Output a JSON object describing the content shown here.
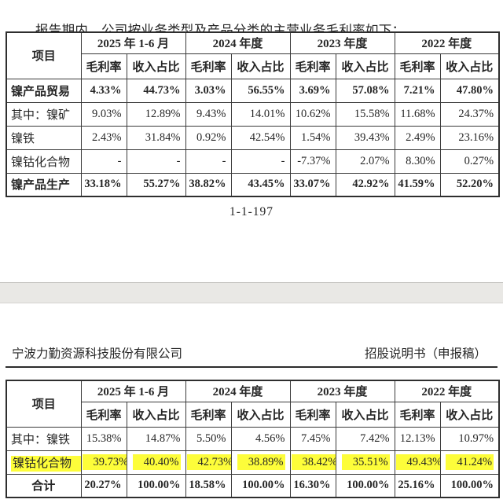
{
  "intro_text": "报告期内，公司按业务类型及产品分类的主营业务毛利率如下：",
  "page_number": "1-1-197",
  "doc_header": {
    "company": "宁波力勤资源科技股份有限公司",
    "doc_title": "招股说明书（申报稿）"
  },
  "columns": {
    "item": "项目",
    "periods": [
      "2025 年 1-6 月",
      "2024 年度",
      "2023 年度",
      "2022 年度"
    ],
    "sub": [
      "毛利率",
      "收入占比"
    ]
  },
  "colors": {
    "highlight": "#fdfd3a"
  },
  "table1": {
    "rows": [
      {
        "label": "镍产品贸易",
        "bold": true,
        "values": [
          "4.33%",
          "44.73%",
          "3.03%",
          "56.55%",
          "3.69%",
          "57.08%",
          "7.21%",
          "47.80%"
        ]
      },
      {
        "label": "其中：镍矿",
        "values": [
          "9.03%",
          "12.89%",
          "9.43%",
          "14.01%",
          "10.62%",
          "15.58%",
          "11.68%",
          "24.37%"
        ]
      },
      {
        "label": "镍铁",
        "values": [
          "2.43%",
          "31.84%",
          "0.92%",
          "42.54%",
          "1.54%",
          "39.43%",
          "2.49%",
          "23.16%"
        ]
      },
      {
        "label": "镍钴化合物",
        "values": [
          "-",
          "-",
          "-",
          "-",
          "-7.37%",
          "2.07%",
          "8.30%",
          "0.27%"
        ]
      },
      {
        "label": "镍产品生产",
        "bold": true,
        "values": [
          "33.18%",
          "55.27%",
          "38.82%",
          "43.45%",
          "33.07%",
          "42.92%",
          "41.59%",
          "52.20%"
        ]
      }
    ]
  },
  "table2": {
    "rows": [
      {
        "label": "其中：镍铁",
        "values": [
          "15.38%",
          "14.87%",
          "5.50%",
          "4.56%",
          "7.45%",
          "7.42%",
          "12.13%",
          "10.97%"
        ]
      },
      {
        "label": "镍钴化合物",
        "highlight": true,
        "values": [
          "39.73%",
          "40.40%",
          "42.73%",
          "38.89%",
          "38.42%",
          "35.51%",
          "49.43%",
          "41.24%"
        ]
      },
      {
        "label": "合计",
        "bold": true,
        "center": true,
        "values": [
          "20.27%",
          "100.00%",
          "18.58%",
          "100.00%",
          "16.30%",
          "100.00%",
          "25.16%",
          "100.00%"
        ]
      }
    ]
  }
}
